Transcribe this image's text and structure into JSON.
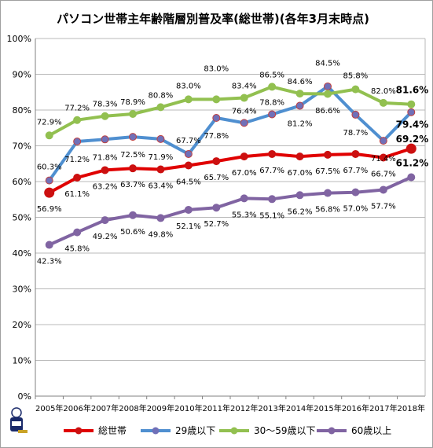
{
  "chart_data": {
    "type": "line",
    "title": "パソコン世帯主年齢階層別普及率(総世帯)(各年3月末時点)",
    "x": [
      "2005年",
      "2006年",
      "2007年",
      "2008年",
      "2009年",
      "2010年",
      "2011年",
      "2012年",
      "2013年",
      "2014年",
      "2015年",
      "2016年",
      "2017年",
      "2018年"
    ],
    "ylim": [
      0,
      100
    ],
    "yticks": [
      "0%",
      "10%",
      "20%",
      "30%",
      "40%",
      "50%",
      "60%",
      "70%",
      "80%",
      "90%",
      "100%"
    ],
    "grid": true,
    "legend_position": "bottom",
    "series": [
      {
        "name": "総世帯",
        "color": "#e00000",
        "marker_color": "#cc1010",
        "values": [
          56.9,
          61.1,
          63.2,
          63.7,
          63.4,
          64.5,
          65.7,
          67.0,
          67.7,
          67.0,
          67.5,
          67.7,
          66.7,
          69.2
        ],
        "labels": [
          "56.9%",
          "61.1%",
          "63.2%",
          "63.7%",
          "63.4%",
          "64.5%",
          "65.7%",
          "67.0%",
          "67.7%",
          "67.0%",
          "67.5%",
          "67.7%",
          "66.7%",
          "69.2%"
        ]
      },
      {
        "name": "29歳以下",
        "color": "#4f8fd0",
        "marker_color": "#7070b8",
        "values": [
          60.3,
          71.2,
          71.8,
          72.5,
          71.9,
          67.7,
          77.8,
          76.4,
          78.8,
          81.2,
          86.6,
          78.7,
          71.4,
          79.4
        ],
        "labels": [
          "60.3%",
          "71.2%",
          "71.8%",
          "72.5%",
          "71.9%",
          "67.7%",
          "77.8%",
          "76.4%",
          "78.8%",
          "81.2%",
          "86.6%",
          "78.7%",
          "71.4%",
          "79.4%"
        ]
      },
      {
        "name": "30～59歳以下",
        "color": "#92c050",
        "marker_color": "#92c050",
        "values": [
          72.9,
          77.2,
          78.3,
          78.9,
          80.8,
          83.0,
          83.0,
          83.4,
          86.5,
          84.6,
          84.5,
          85.8,
          82.0,
          81.6
        ],
        "labels": [
          "72.9%",
          "77.2%",
          "78.3%",
          "78.9%",
          "80.8%",
          "83.0%",
          "83.0%",
          "83.4%",
          "86.5%",
          "84.6%",
          "84.5%",
          "85.8%",
          "82.0%",
          "81.6%"
        ]
      },
      {
        "name": "60歳以上",
        "color": "#8064a2",
        "marker_color": "#8064a2",
        "values": [
          42.3,
          45.8,
          49.2,
          50.6,
          49.8,
          52.1,
          52.7,
          55.3,
          55.1,
          56.2,
          56.8,
          57.0,
          57.7,
          61.2
        ],
        "labels": [
          "42.3%",
          "45.8%",
          "49.2%",
          "50.6%",
          "49.8%",
          "52.1%",
          "52.7%",
          "55.3%",
          "55.1%",
          "56.2%",
          "56.8%",
          "57.0%",
          "57.7%",
          "61.2%"
        ]
      }
    ]
  }
}
